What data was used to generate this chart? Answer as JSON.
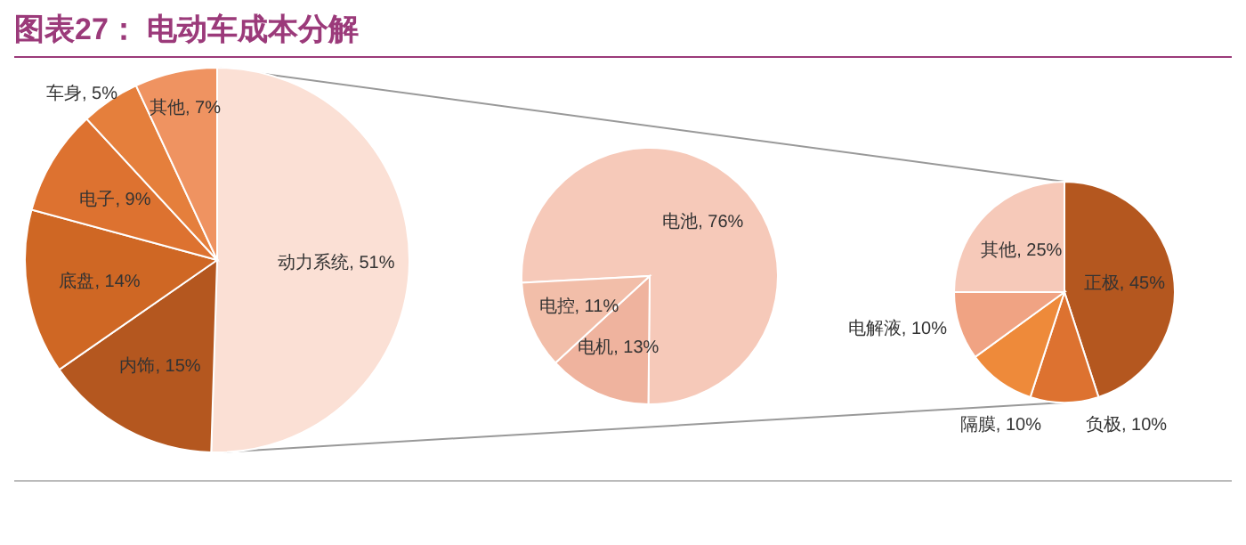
{
  "chart_data": [
    {
      "type": "pie",
      "title": "图表27： 电动车成本分解",
      "categories": [
        "动力系统",
        "内饰",
        "底盘",
        "电子",
        "车身",
        "其他"
      ],
      "values": [
        51,
        15,
        14,
        9,
        5,
        7
      ],
      "colors": [
        "#fbe0d5",
        "#b4571f",
        "#cf6724",
        "#dd7230",
        "#e57f3c",
        "#ef9361"
      ],
      "value_labels": [
        "51%",
        "15%",
        "14%",
        "9%",
        "5%",
        "7%"
      ]
    },
    {
      "type": "pie",
      "categories": [
        "电池",
        "电机",
        "电控"
      ],
      "values": [
        76,
        13,
        11
      ],
      "colors": [
        "#f6c9b9",
        "#efb39e",
        "#f2bea9"
      ],
      "value_labels": [
        "76%",
        "13%",
        "11%"
      ]
    },
    {
      "type": "pie",
      "categories": [
        "正极",
        "负极",
        "隔膜",
        "电解液",
        "其他"
      ],
      "values": [
        45,
        10,
        10,
        10,
        25
      ],
      "colors": [
        "#b4571f",
        "#dd7230",
        "#ee8a3a",
        "#f0a383",
        "#f6c9b9"
      ],
      "value_labels": [
        "45%",
        "10%",
        "10%",
        "10%",
        "25%"
      ]
    }
  ]
}
